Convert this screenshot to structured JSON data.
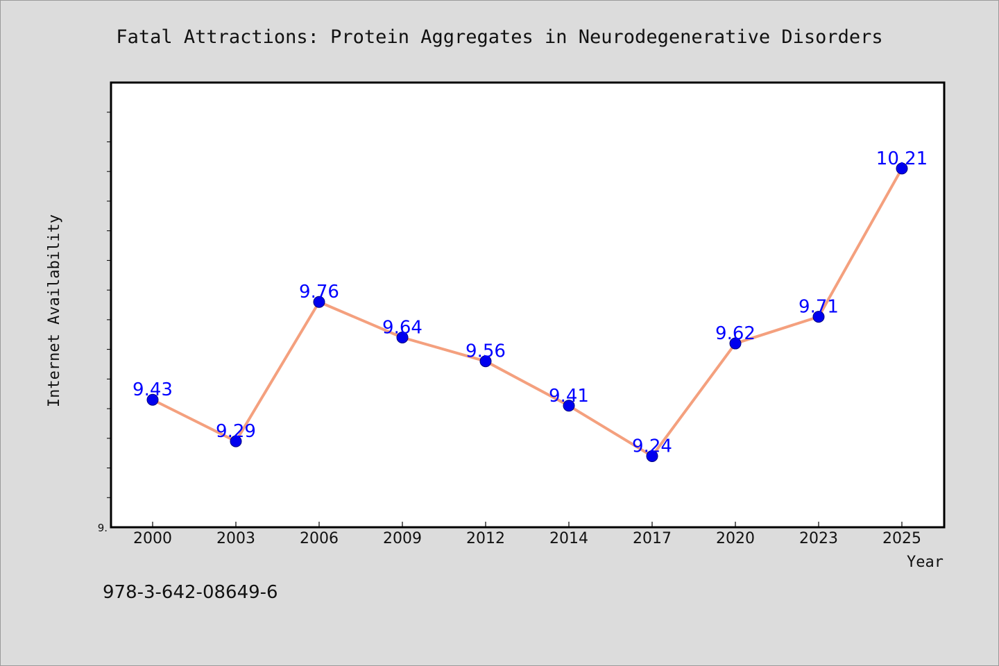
{
  "chart_data": {
    "type": "line",
    "title": "Fatal Attractions: Protein Aggregates in Neurodegenerative Disorders",
    "xlabel": "Year",
    "ylabel": "Internet Availability",
    "categories": [
      "2000",
      "2003",
      "2006",
      "2009",
      "2012",
      "2014",
      "2017",
      "2020",
      "2023",
      "2025"
    ],
    "series": [
      {
        "values": [
          9.43,
          9.29,
          9.76,
          9.64,
          9.56,
          9.41,
          9.24,
          9.62,
          9.71,
          10.21
        ]
      }
    ],
    "data_labels": [
      "9.43",
      "9.29",
      "9.76",
      "9.64",
      "9.56",
      "9.41",
      "9.24",
      "9.62",
      "9.71",
      "10.21"
    ],
    "ylim": [
      9.0,
      10.5
    ],
    "y_tick_label": "9.",
    "y_minor_tick_step": 0.1,
    "grid": false,
    "colors": {
      "line": "#f4a07e",
      "marker_fill": "#0000ee",
      "marker_edge": "#000080",
      "data_label": "#0000ff",
      "background": "#dcdcdc",
      "plot_background": "#ffffff"
    }
  },
  "footer": {
    "isbn": "978-3-642-08649-6"
  }
}
